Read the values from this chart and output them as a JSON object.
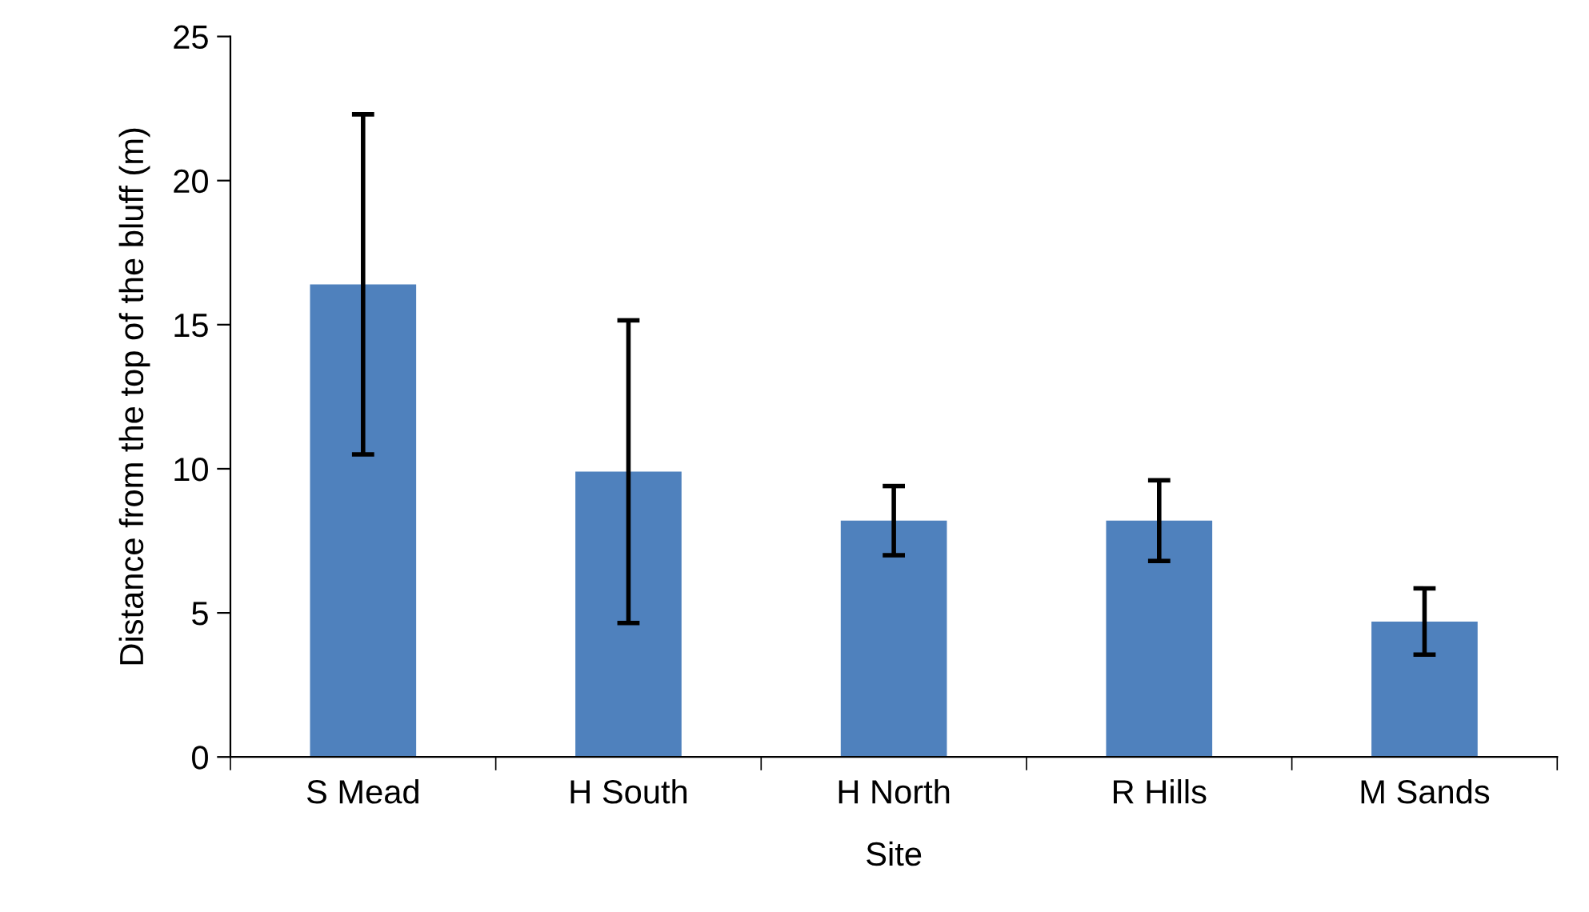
{
  "chart_data": {
    "type": "bar",
    "xlabel": "Site",
    "ylabel": "Distance from the top of the bluff (m)",
    "categories": [
      "S Mead",
      "H South",
      "H North",
      "R Hills",
      "M Sands"
    ],
    "values": [
      16.4,
      9.9,
      8.2,
      8.2,
      4.7
    ],
    "errors": [
      5.9,
      5.25,
      1.2,
      1.4,
      1.15
    ],
    "color": "#4f81bd",
    "ylim": [
      0,
      25
    ],
    "yticks": [
      0,
      5,
      10,
      15,
      20,
      25
    ],
    "grid": false,
    "legend": false
  }
}
